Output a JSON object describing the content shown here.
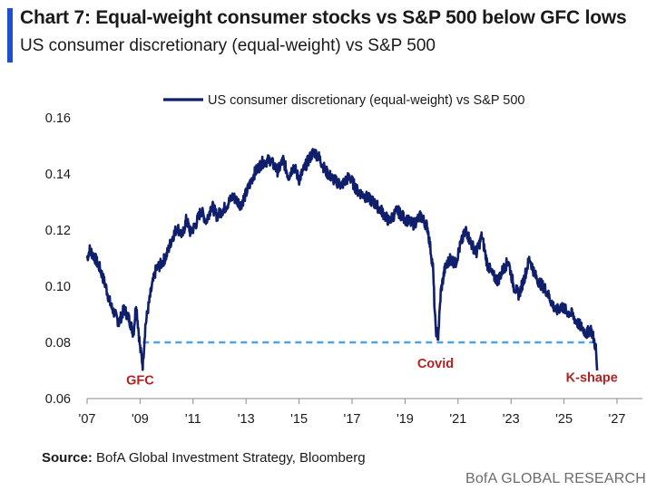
{
  "header": {
    "title": "Chart 7: Equal-weight consumer stocks vs S&P 500 below GFC lows",
    "subtitle": "US consumer discretionary (equal-weight) vs S&P 500"
  },
  "footer": {
    "source_label": "Source:",
    "source_text": "BofA Global Investment Strategy, Bloomberg",
    "brand": "BofA GLOBAL RESEARCH"
  },
  "colors": {
    "series": "#0f1f6b",
    "reference_line": "#4aa3e6",
    "annotation": "#b22222",
    "accent": "#1f4fd1"
  },
  "chart_data": {
    "type": "line",
    "title": "",
    "xlabel": "",
    "ylabel": "",
    "xlim": [
      2007,
      2027
    ],
    "ylim": [
      0.06,
      0.16
    ],
    "grid": false,
    "legend_position": "top",
    "y_ticks": [
      "0.06",
      "0.08",
      "0.10",
      "0.12",
      "0.14",
      "0.16"
    ],
    "x_ticks": [
      {
        "value": 2007,
        "label": "'07"
      },
      {
        "value": 2009,
        "label": "'09"
      },
      {
        "value": 2011,
        "label": "'11"
      },
      {
        "value": 2013,
        "label": "'13"
      },
      {
        "value": 2015,
        "label": "'15"
      },
      {
        "value": 2017,
        "label": "'17"
      },
      {
        "value": 2019,
        "label": "'19"
      },
      {
        "value": 2021,
        "label": "'21"
      },
      {
        "value": 2023,
        "label": "'23"
      },
      {
        "value": 2025,
        "label": "'25"
      },
      {
        "value": 2027,
        "label": "'27"
      }
    ],
    "series": [
      {
        "name": "US consumer discretionary (equal-weight) vs S&P 500",
        "x": [
          2007.0,
          2007.1,
          2007.3,
          2007.5,
          2007.7,
          2007.9,
          2008.0,
          2008.2,
          2008.4,
          2008.6,
          2008.75,
          2008.85,
          2009.0,
          2009.1,
          2009.2,
          2009.3,
          2009.45,
          2009.6,
          2009.8,
          2010.0,
          2010.2,
          2010.4,
          2010.6,
          2010.75,
          2010.9,
          2011.1,
          2011.3,
          2011.5,
          2011.7,
          2011.9,
          2012.2,
          2012.5,
          2012.8,
          2013.0,
          2013.3,
          2013.6,
          2013.9,
          2014.2,
          2014.4,
          2014.6,
          2014.8,
          2015.0,
          2015.3,
          2015.55,
          2015.75,
          2016.0,
          2016.3,
          2016.6,
          2016.9,
          2017.2,
          2017.5,
          2017.8,
          2018.1,
          2018.4,
          2018.7,
          2019.0,
          2019.3,
          2019.6,
          2019.85,
          2020.05,
          2020.15,
          2020.25,
          2020.35,
          2020.5,
          2020.7,
          2020.9,
          2021.1,
          2021.3,
          2021.5,
          2021.7,
          2021.9,
          2022.1,
          2022.3,
          2022.5,
          2022.7,
          2022.9,
          2023.1,
          2023.3,
          2023.5,
          2023.7,
          2023.9,
          2024.1,
          2024.3,
          2024.5,
          2024.7,
          2024.9,
          2025.1,
          2025.3,
          2025.5,
          2025.7,
          2025.85,
          2026.0,
          2026.1,
          2026.2,
          2026.25
        ],
        "values": [
          0.11,
          0.113,
          0.11,
          0.106,
          0.1,
          0.093,
          0.091,
          0.087,
          0.092,
          0.088,
          0.083,
          0.094,
          0.078,
          0.072,
          0.086,
          0.092,
          0.1,
          0.106,
          0.108,
          0.111,
          0.117,
          0.121,
          0.118,
          0.124,
          0.119,
          0.122,
          0.127,
          0.123,
          0.129,
          0.125,
          0.128,
          0.132,
          0.129,
          0.133,
          0.14,
          0.144,
          0.145,
          0.141,
          0.145,
          0.139,
          0.143,
          0.138,
          0.144,
          0.148,
          0.146,
          0.141,
          0.138,
          0.136,
          0.139,
          0.134,
          0.132,
          0.13,
          0.127,
          0.123,
          0.127,
          0.124,
          0.122,
          0.125,
          0.121,
          0.107,
          0.085,
          0.082,
          0.098,
          0.106,
          0.11,
          0.108,
          0.115,
          0.12,
          0.115,
          0.112,
          0.118,
          0.108,
          0.104,
          0.102,
          0.106,
          0.109,
          0.1,
          0.097,
          0.103,
          0.11,
          0.104,
          0.101,
          0.099,
          0.095,
          0.091,
          0.093,
          0.091,
          0.09,
          0.087,
          0.085,
          0.083,
          0.085,
          0.082,
          0.078,
          0.07
        ]
      },
      {
        "name": "GFC low reference",
        "style": "dashed",
        "x": [
          2009.1,
          2026.1
        ],
        "values": [
          0.08,
          0.08
        ]
      }
    ],
    "annotations": [
      {
        "text": "GFC",
        "x": 2009.0,
        "y": 0.065
      },
      {
        "text": "Covid",
        "x": 2020.15,
        "y": 0.071
      },
      {
        "text": "K-shape",
        "x": 2026.05,
        "y": 0.066
      }
    ]
  }
}
